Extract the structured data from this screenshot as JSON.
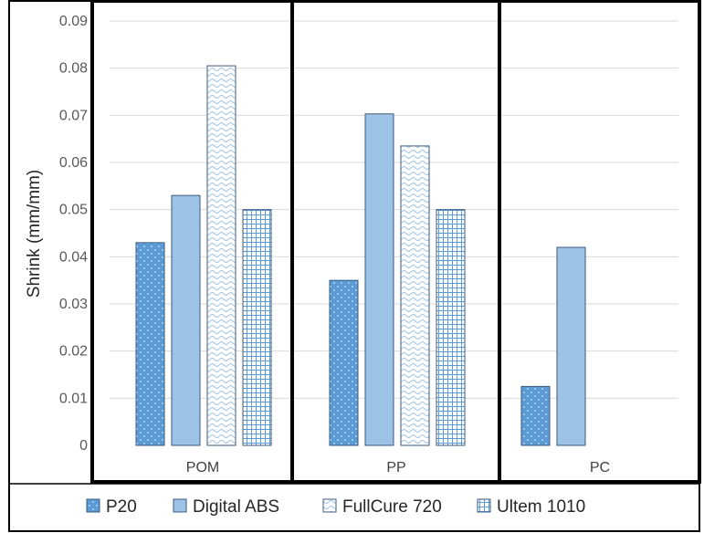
{
  "chart_data": {
    "type": "bar",
    "title": "",
    "xlabel": "",
    "ylabel": "Shrink (mm/mm)",
    "ylim": [
      0,
      0.09
    ],
    "yticks": [
      "0",
      "0.01",
      "0.02",
      "0.03",
      "0.04",
      "0.05",
      "0.06",
      "0.07",
      "0.08",
      "0.09"
    ],
    "categories": [
      "POM",
      "PP",
      "PC"
    ],
    "grid": true,
    "legend": "bottom",
    "series": [
      {
        "name": "P20",
        "values": [
          0.043,
          0.035,
          0.0125
        ],
        "color": "#5b9bd5",
        "pattern": "dots"
      },
      {
        "name": "Digital ABS",
        "values": [
          0.053,
          0.0703,
          0.042
        ],
        "color": "#9dc3e6",
        "pattern": "solid"
      },
      {
        "name": "FullCure 720",
        "values": [
          0.0805,
          0.0635,
          null
        ],
        "color": "#ffffff",
        "pattern": "waves"
      },
      {
        "name": "Ultem 1010",
        "values": [
          0.05,
          0.05,
          null
        ],
        "color": "#ffffff",
        "pattern": "grid"
      }
    ]
  }
}
